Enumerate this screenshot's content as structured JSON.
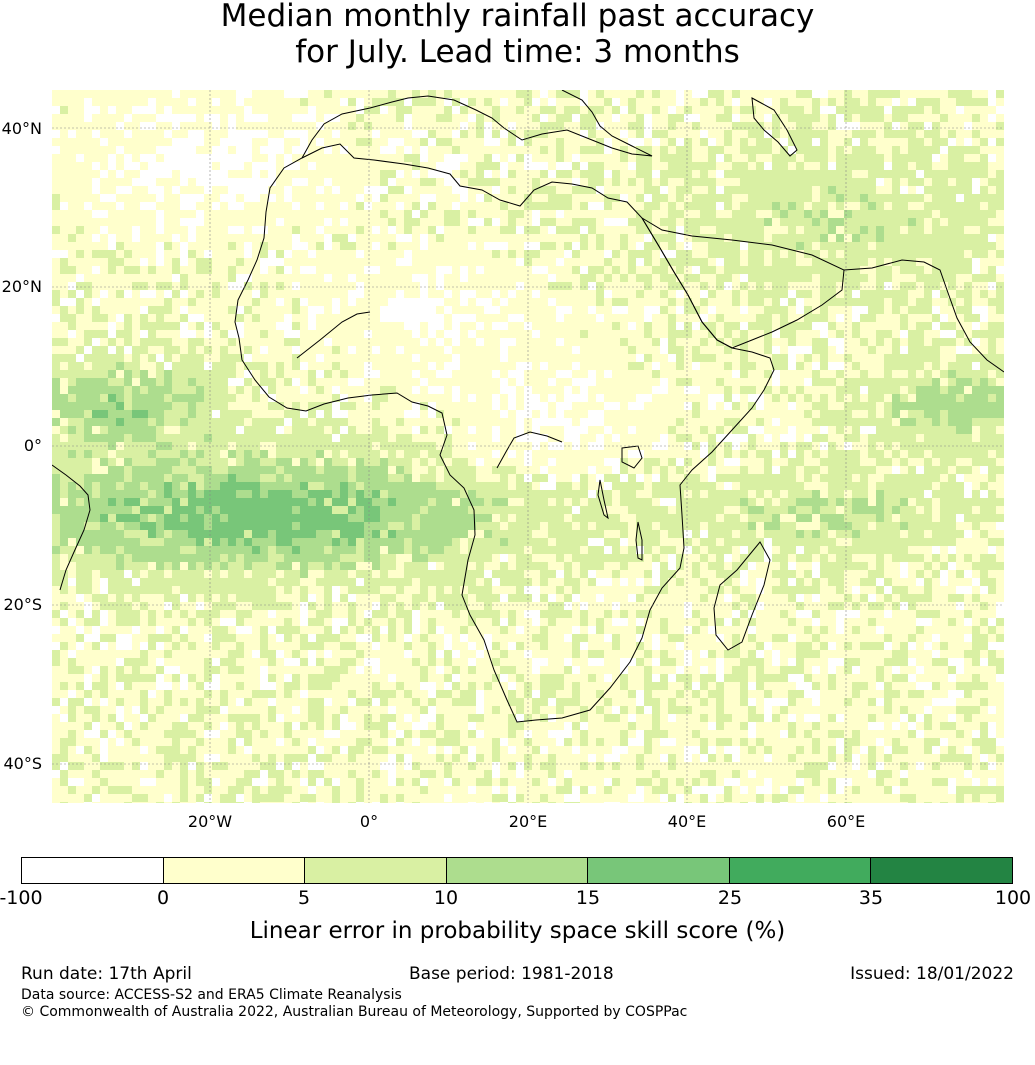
{
  "title_line1": "Median monthly rainfall past accuracy",
  "title_line2": "for July. Lead time: 3 months",
  "lat_labels": [
    "40°N",
    "20°N",
    "0°",
    "20°S",
    "40°S"
  ],
  "lon_labels": [
    "20°W",
    "0°",
    "20°E",
    "40°E",
    "60°E"
  ],
  "colorbar": {
    "ticks": [
      "-100",
      "0",
      "5",
      "10",
      "15",
      "25",
      "35",
      "100"
    ],
    "colors": [
      "#ffffff",
      "#ffffcc",
      "#d9f0a3",
      "#addd8e",
      "#78c679",
      "#41ab5d",
      "#238443"
    ],
    "label": "Linear error in probability space skill score (%)"
  },
  "footer": {
    "run_date": "Run date: 17th April",
    "base_period": "Base period: 1981-2018",
    "issued": "Issued: 18/01/2022",
    "data_source": "Data source: ACCESS-S2 and ERA5 Climate Reanalysis",
    "copyright": "© Commonwealth of Australia 2022, Australian Bureau of Meteorology, Supported by COSPPac"
  }
}
